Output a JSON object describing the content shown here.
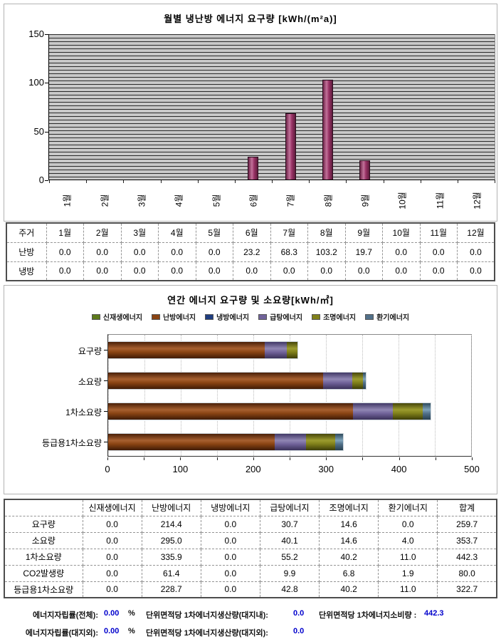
{
  "chart_data": [
    {
      "type": "bar",
      "title": "월별 냉난방 에너지 요구량 [kWh/(m²a)]",
      "categories": [
        "1월",
        "2월",
        "3월",
        "4월",
        "5월",
        "6월",
        "7월",
        "8월",
        "9월",
        "10월",
        "11월",
        "12월"
      ],
      "series": [
        {
          "name": "난방",
          "values": [
            0.0,
            0.0,
            0.0,
            0.0,
            0.0,
            23.2,
            68.3,
            103.2,
            19.7,
            0.0,
            0.0,
            0.0
          ]
        },
        {
          "name": "냉방",
          "values": [
            0.0,
            0.0,
            0.0,
            0.0,
            0.0,
            0.0,
            0.0,
            0.0,
            0.0,
            0.0,
            0.0,
            0.0
          ]
        }
      ],
      "xlabel": "",
      "ylabel": "",
      "ylim": [
        0,
        150
      ],
      "y_ticks": [
        0,
        50,
        100,
        150
      ],
      "grid": "dense horizontal minor gridlines on gray plot background",
      "legend_position": "none",
      "bar_color": "#993366",
      "plot_bg": "#c9c9c9"
    },
    {
      "type": "bar",
      "subtype": "horizontal-stacked",
      "title": "연간 에너지 요구량 및 소요량[kWh/㎡]",
      "categories": [
        "요구량",
        "소요량",
        "1차소요량",
        "등급용1차소요량"
      ],
      "series": [
        {
          "name": "신재생에너지",
          "color": "#5d7a1a",
          "grad": [
            "#36490c",
            "#7ba028",
            "#2f400a"
          ],
          "values": [
            0.0,
            0.0,
            0.0,
            0.0
          ]
        },
        {
          "name": "난방에너지",
          "color": "#8a4413",
          "grad": [
            "#4a2008",
            "#a76030",
            "#3f1b06"
          ],
          "values": [
            214.4,
            295.0,
            335.9,
            228.7
          ]
        },
        {
          "name": "냉방에너지",
          "color": "#1f3d80",
          "grad": [
            "#101f45",
            "#2f55ad",
            "#0d1a3a"
          ],
          "values": [
            0.0,
            0.0,
            0.0,
            0.0
          ]
        },
        {
          "name": "급탕에너지",
          "color": "#71639a",
          "grad": [
            "#413866",
            "#9187b4",
            "#3a3159"
          ],
          "values": [
            30.7,
            40.1,
            55.2,
            42.8
          ]
        },
        {
          "name": "조명에너지",
          "color": "#80801a",
          "grad": [
            "#46460a",
            "#9c9c2e",
            "#3d3d08"
          ],
          "values": [
            14.6,
            14.6,
            40.2,
            40.2
          ]
        },
        {
          "name": "환기에너지",
          "color": "#52718a",
          "grad": [
            "#2e4a5c",
            "#7fa3ba",
            "#284050"
          ],
          "values": [
            0.0,
            4.0,
            11.0,
            11.0
          ]
        }
      ],
      "xlabel": "",
      "ylabel": "",
      "xlim": [
        0,
        500
      ],
      "x_ticks": [
        0,
        100,
        200,
        300,
        400,
        500
      ],
      "minor_tick_step": 50,
      "grid": "vertical dotted gridlines every 50",
      "legend_position": "top"
    }
  ],
  "monthly_table": {
    "columns": [
      "주거",
      "1월",
      "2월",
      "3월",
      "4월",
      "5월",
      "6월",
      "7월",
      "8월",
      "9월",
      "10월",
      "11월",
      "12월"
    ],
    "rows": [
      {
        "label": "난방",
        "values": [
          "0.0",
          "0.0",
          "0.0",
          "0.0",
          "0.0",
          "23.2",
          "68.3",
          "103.2",
          "19.7",
          "0.0",
          "0.0",
          "0.0"
        ]
      },
      {
        "label": "냉방",
        "values": [
          "0.0",
          "0.0",
          "0.0",
          "0.0",
          "0.0",
          "0.0",
          "0.0",
          "0.0",
          "0.0",
          "0.0",
          "0.0",
          "0.0"
        ]
      }
    ]
  },
  "annual_table": {
    "columns": [
      "",
      "신재생에너지",
      "난방에너지",
      "냉방에너지",
      "급탕에너지",
      "조명에너지",
      "환기에너지",
      "합계"
    ],
    "rows": [
      {
        "label": "요구량",
        "values": [
          "0.0",
          "214.4",
          "0.0",
          "30.7",
          "14.6",
          "0.0",
          "259.7"
        ]
      },
      {
        "label": "소요량",
        "values": [
          "0.0",
          "295.0",
          "0.0",
          "40.1",
          "14.6",
          "4.0",
          "353.7"
        ]
      },
      {
        "label": "1차소요량",
        "values": [
          "0.0",
          "335.9",
          "0.0",
          "55.2",
          "40.2",
          "11.0",
          "442.3"
        ]
      },
      {
        "label": "CO2발생량",
        "values": [
          "0.0",
          "61.4",
          "0.0",
          "9.9",
          "6.8",
          "1.9",
          "80.0"
        ]
      },
      {
        "label": "등급용1차소요량",
        "values": [
          "0.0",
          "228.7",
          "0.0",
          "42.8",
          "40.2",
          "11.0",
          "322.7"
        ]
      }
    ]
  },
  "summary": {
    "row1": [
      {
        "label": "에너지자립률(전체):",
        "value": "0.00",
        "unit": "%"
      },
      {
        "label": "단위면적당 1차에너지생산량(대지내):",
        "value": "0.0"
      },
      {
        "label": "단위면적당 1차에너지소비량 :",
        "value": "442.3"
      }
    ],
    "row2": [
      {
        "label": "에너지자립률(대지외):",
        "value": "0.00",
        "unit": "%"
      },
      {
        "label": "단위면적당 1차에너지생산량(대지외):",
        "value": "0.0"
      }
    ]
  },
  "colors": {
    "value_text": "#0000cc",
    "panel_border": "#b3b3b3",
    "table_outer_border": "#4d4d4d",
    "table_inner_border": "#949494",
    "monthly_bar": "#993366",
    "monthly_plot_bg": "#c9c9c9"
  }
}
